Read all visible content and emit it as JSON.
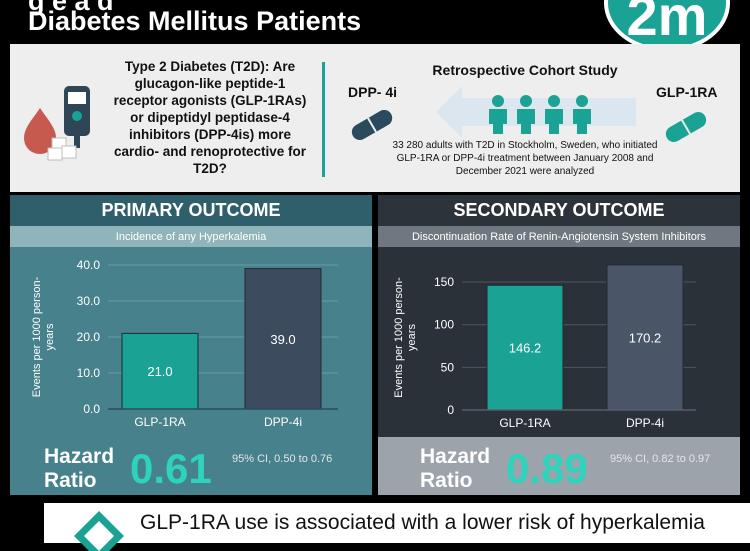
{
  "header": {
    "title_line1": "g   e        a   d",
    "title_line2": "Diabetes Mellitus Patients",
    "logo_text": "2m"
  },
  "intro": {
    "question": "Type 2 Diabetes (T2D): Are glucagon-like peptide-1 receptor agonists (GLP-1RAs) or dipeptidyl peptidase-4 inhibitors (DPP-4is) more cardio- and renoprotective for T2D?",
    "study_title": "Retrospective Cohort Study",
    "left_drug": "DPP- 4i",
    "right_drug": "GLP-1RA",
    "study_description": "33 280 adults with T2D in Stockholm, Sweden, who initiated GLP-1RA or DPP-4i treatment between January 2008 and December 2021 were analyzed",
    "colors": {
      "teal": "#1aa394",
      "navy": "#2f4657",
      "pill_dark": "#2b4a5e"
    }
  },
  "primary": {
    "title": "PRIMARY OUTCOME",
    "subtitle": "Incidence of any Hyperkalemia",
    "hazard_label_1": "Hazard",
    "hazard_label_2": "Ratio",
    "hazard_value": "0.61",
    "ci": "95% CI, 0.50 to 0.76"
  },
  "secondary": {
    "title": "SECONDARY OUTCOME",
    "subtitle": "Discontinuation Rate of Renin-Angiotensin System Inhibitors",
    "hazard_label_1": "Hazard",
    "hazard_label_2": "Ratio",
    "hazard_value": "0.89",
    "ci": "95% CI, 0.82 to 0.97"
  },
  "conclusion": {
    "text": "GLP-1RA use is associated with a lower risk of hyperkalemia"
  },
  "chart_data": [
    {
      "type": "bar",
      "title": "Incidence of any Hyperkalemia",
      "categories": [
        "GLP-1RA",
        "DPP-4i"
      ],
      "values": [
        21.0,
        39.0
      ],
      "value_labels": [
        "21.0",
        "39.0"
      ],
      "ylabel": "Events per 1000 person-years",
      "ylim": [
        0,
        40
      ],
      "yticks": [
        "0.0",
        "10.0",
        "20.0",
        "30.0",
        "40.0"
      ],
      "ytick_values": [
        0,
        10,
        20,
        30,
        40
      ],
      "colors": [
        "#1aa394",
        "#3d4b5f"
      ],
      "grid": true
    },
    {
      "type": "bar",
      "title": "Discontinuation Rate of Renin-Angiotensin System Inhibitors",
      "categories": [
        "GLP-1RA",
        "DPP-4i"
      ],
      "values": [
        146.2,
        170.2
      ],
      "value_labels": [
        "146.2",
        "170.2"
      ],
      "ylabel": "Events per 1000 person-years",
      "ylim": [
        0,
        170
      ],
      "yticks": [
        "0",
        "50",
        "100",
        "150"
      ],
      "ytick_values": [
        0,
        50,
        100,
        150
      ],
      "colors": [
        "#1aa394",
        "#4a5568"
      ],
      "grid": true
    }
  ]
}
